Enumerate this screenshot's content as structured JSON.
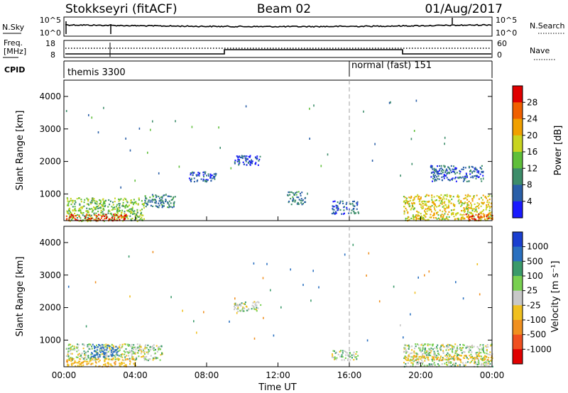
{
  "header": {
    "station": "Stokkseyri (fitACF)",
    "beam": "Beam 02",
    "date": "01/Aug/2017"
  },
  "top_panels": {
    "nsky_label": "N.Sky",
    "nsky_ticks": [
      "10^5",
      "10^0"
    ],
    "nsearch_label": "N.Search",
    "nsearch_ticks": [
      "10^5",
      "10^0"
    ],
    "freq_label_line1": "Freq.",
    "freq_label_line2": "[MHz]",
    "freq_ticks": [
      "18",
      "8"
    ],
    "nave_label": "Nave",
    "nave_ticks": [
      "60",
      "0"
    ],
    "cpid_label": "CPID",
    "cpid_modes": [
      {
        "name": "themis 3300",
        "start_hour": 0
      },
      {
        "name": "normal (fast) 151",
        "start_hour": 16
      }
    ]
  },
  "colors": {
    "power_scale": [
      "#1a1aff",
      "#2a5fa8",
      "#3d8d6a",
      "#5fbf3a",
      "#c8d420",
      "#f0a000",
      "#f06000",
      "#e00000"
    ],
    "velocity_scale": [
      "#1a3fd0",
      "#2a70c0",
      "#3a9a6a",
      "#78d050",
      "#c8c8c8",
      "#f0c020",
      "#f09020",
      "#f05020",
      "#e00000"
    ],
    "gray_line": "#a0a0a0"
  },
  "chart_data": [
    {
      "type": "heatmap",
      "title": "Power",
      "xlabel": "Time UT",
      "ylabel": "Slant Range [km]",
      "xlim": [
        0,
        24
      ],
      "ylim": [
        180,
        4500
      ],
      "x_ticks": [
        "00:00",
        "04:00",
        "08:00",
        "12:00",
        "16:00",
        "20:00",
        "00:00"
      ],
      "y_ticks": [
        "1000",
        "2000",
        "3000",
        "4000"
      ],
      "colorbar": {
        "label": "Power [dB]",
        "ticks": [
          "28",
          "24",
          "20",
          "16",
          "12",
          "8",
          "4"
        ],
        "range": [
          0,
          30
        ]
      },
      "regions": [
        {
          "t0": 0.1,
          "t1": 4.5,
          "r0": 180,
          "r1": 900,
          "value": 14
        },
        {
          "t0": 0.1,
          "t1": 3.5,
          "r0": 200,
          "r1": 400,
          "value": 26
        },
        {
          "t0": 4.5,
          "t1": 6.2,
          "r0": 600,
          "r1": 1000,
          "value": 8
        },
        {
          "t0": 7.0,
          "t1": 8.5,
          "r0": 1400,
          "r1": 1700,
          "value": 6
        },
        {
          "t0": 9.5,
          "t1": 11.0,
          "r0": 1900,
          "r1": 2200,
          "value": 5
        },
        {
          "t0": 12.5,
          "t1": 13.5,
          "r0": 700,
          "r1": 1100,
          "value": 8
        },
        {
          "t0": 15.0,
          "t1": 16.5,
          "r0": 400,
          "r1": 800,
          "value": 6
        },
        {
          "t0": 19.0,
          "t1": 24.0,
          "r0": 200,
          "r1": 1000,
          "value": 18
        },
        {
          "t0": 22.5,
          "t1": 24.0,
          "r0": 200,
          "r1": 400,
          "value": 26
        },
        {
          "t0": 20.5,
          "t1": 23.5,
          "r0": 1400,
          "r1": 1900,
          "value": 6
        }
      ]
    },
    {
      "type": "heatmap",
      "title": "Velocity",
      "xlabel": "Time UT",
      "ylabel": "Slant Range [km]",
      "xlim": [
        0,
        24
      ],
      "ylim": [
        180,
        4500
      ],
      "x_ticks": [
        "00:00",
        "04:00",
        "08:00",
        "12:00",
        "16:00",
        "20:00",
        "00:00"
      ],
      "y_ticks": [
        "1000",
        "2000",
        "3000",
        "4000"
      ],
      "colorbar": {
        "label": "Velocity [m s⁻¹]",
        "ticks": [
          "1000",
          "500",
          "100",
          "25",
          "-25",
          "-100",
          "-500",
          "-1000"
        ],
        "range": [
          -1000,
          1000
        ]
      },
      "regions": [
        {
          "t0": 0.1,
          "t1": 5.5,
          "r0": 400,
          "r1": 900,
          "value": 0
        },
        {
          "t0": 0.1,
          "t1": 4.0,
          "r0": 200,
          "r1": 450,
          "value": -80
        },
        {
          "t0": 1.5,
          "t1": 3.0,
          "r0": 500,
          "r1": 900,
          "value": 150
        },
        {
          "t0": 9.5,
          "t1": 11.0,
          "r0": 1900,
          "r1": 2200,
          "value": 0
        },
        {
          "t0": 15.0,
          "t1": 16.5,
          "r0": 400,
          "r1": 700,
          "value": 0
        },
        {
          "t0": 19.0,
          "t1": 24.0,
          "r0": 200,
          "r1": 900,
          "value": 0
        },
        {
          "t0": 19.0,
          "t1": 24.0,
          "r0": 400,
          "r1": 550,
          "value": -80
        }
      ]
    }
  ]
}
